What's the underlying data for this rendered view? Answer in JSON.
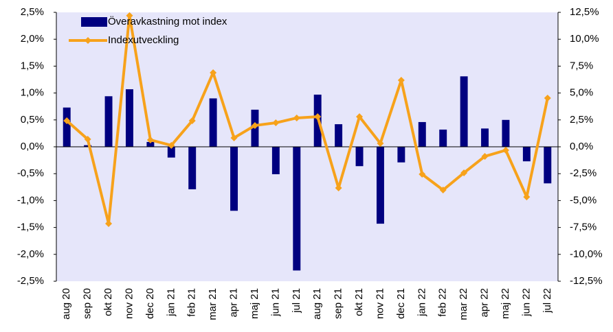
{
  "chart_data": {
    "type": "bar",
    "categories": [
      "aug 20",
      "sep 20",
      "okt 20",
      "nov 20",
      "dec 20",
      "jan 21",
      "feb 21",
      "mar 21",
      "apr 21",
      "maj 21",
      "jun 21",
      "jul 21",
      "aug 21",
      "sep 21",
      "okt 21",
      "nov 21",
      "dec 21",
      "jan 22",
      "feb 22",
      "mar 22",
      "apr 22",
      "maj 22",
      "jun 22",
      "jul 22"
    ],
    "series": [
      {
        "name": "Överavkastning mot index",
        "type": "bar",
        "color": "#000080",
        "values": [
          0.73,
          0.03,
          0.94,
          1.07,
          0.09,
          -0.2,
          -0.79,
          0.9,
          -1.19,
          0.69,
          -0.51,
          -2.3,
          0.97,
          0.42,
          -0.36,
          -1.43,
          -0.29,
          0.46,
          0.32,
          1.31,
          0.34,
          0.5,
          -0.27,
          -0.68
        ]
      },
      {
        "name": "Indexutveckling",
        "type": "line",
        "axis": "y2",
        "color": "#f7a21b",
        "values": [
          2.42,
          0.7,
          -7.14,
          12.2,
          0.64,
          0.13,
          2.42,
          6.89,
          0.83,
          1.98,
          2.23,
          2.68,
          2.8,
          -3.83,
          2.8,
          0.32,
          6.19,
          -2.55,
          -4.02,
          -2.42,
          -0.89,
          -0.32,
          -4.66,
          4.53
        ]
      }
    ],
    "ylim": [
      -2.5,
      2.5
    ],
    "yticks": [
      {
        "value": -2.5,
        "label": "-2,5%"
      },
      {
        "value": -2.0,
        "label": "-2,0%"
      },
      {
        "value": -1.5,
        "label": "-1,5%"
      },
      {
        "value": -1.0,
        "label": "-1,0%"
      },
      {
        "value": -0.5,
        "label": "-0,5%"
      },
      {
        "value": 0,
        "label": "0,0%"
      },
      {
        "value": 0.5,
        "label": "0,5%"
      },
      {
        "value": 1.0,
        "label": "1,0%"
      },
      {
        "value": 1.5,
        "label": "1,5%"
      },
      {
        "value": 2.0,
        "label": "2,0%"
      },
      {
        "value": 2.5,
        "label": "2,5%"
      }
    ],
    "y2lim": [
      -12.5,
      12.5
    ],
    "y2ticks": [
      {
        "value": -12.5,
        "label": "-12,5%"
      },
      {
        "value": -10.0,
        "label": "-10,0%"
      },
      {
        "value": -7.5,
        "label": "-7,5%"
      },
      {
        "value": -5.0,
        "label": "-5,0%"
      },
      {
        "value": -2.5,
        "label": "-2,5%"
      },
      {
        "value": 0,
        "label": "0,0%"
      },
      {
        "value": 2.5,
        "label": "2,5%"
      },
      {
        "value": 5.0,
        "label": "5,0%"
      },
      {
        "value": 7.5,
        "label": "7,5%"
      },
      {
        "value": 10.0,
        "label": "10,0%"
      },
      {
        "value": 12.5,
        "label": "12,5%"
      }
    ],
    "plot_background": "#e6e6fa",
    "legend": "top-left"
  }
}
